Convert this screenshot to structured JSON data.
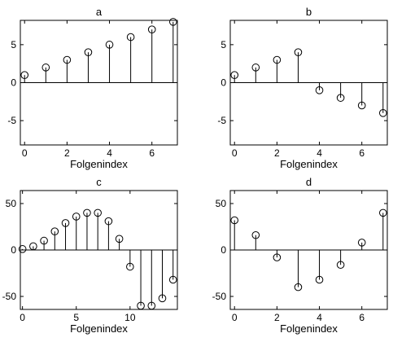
{
  "chart_data": [
    {
      "type": "stem",
      "title": "a",
      "xlabel": "Folgenindex",
      "x": [
        0,
        1,
        2,
        3,
        4,
        5,
        6,
        7
      ],
      "values": [
        1,
        2,
        3,
        4,
        5,
        6,
        7,
        8
      ],
      "xlim": [
        -0.2,
        7.2
      ],
      "ylim": [
        -8.2,
        8.2
      ],
      "xticks": [
        0,
        2,
        4,
        6
      ],
      "yticks": [
        5,
        0,
        -5
      ],
      "grid": false
    },
    {
      "type": "stem",
      "title": "b",
      "xlabel": "Folgenindex",
      "x": [
        0,
        1,
        2,
        3,
        4,
        5,
        6,
        7
      ],
      "values": [
        1,
        2,
        3,
        4,
        -1,
        -2,
        -3,
        -4
      ],
      "xlim": [
        -0.2,
        7.2
      ],
      "ylim": [
        -8.2,
        8.2
      ],
      "xticks": [
        0,
        2,
        4,
        6
      ],
      "yticks": [
        5,
        0,
        -5
      ],
      "grid": false
    },
    {
      "type": "stem",
      "title": "c",
      "xlabel": "Folgenindex",
      "x": [
        0,
        1,
        2,
        3,
        4,
        5,
        6,
        7,
        8,
        9,
        10,
        11,
        12,
        13,
        14
      ],
      "values": [
        1,
        4,
        10,
        20,
        29,
        36,
        40,
        40,
        31,
        12,
        -18,
        -60,
        -60,
        -52,
        -32
      ],
      "xlim": [
        -0.2,
        14.4
      ],
      "ylim": [
        -64,
        64
      ],
      "xticks": [
        0,
        5,
        10
      ],
      "yticks": [
        50,
        0,
        -50
      ],
      "grid": false
    },
    {
      "type": "stem",
      "title": "d",
      "xlabel": "Folgenindex",
      "x": [
        0,
        1,
        2,
        3,
        4,
        5,
        6,
        7
      ],
      "values": [
        32,
        16,
        -8,
        -40,
        -32,
        -16,
        8,
        40
      ],
      "xlim": [
        -0.2,
        7.2
      ],
      "ylim": [
        -64,
        64
      ],
      "xticks": [
        0,
        2,
        4,
        6
      ],
      "yticks": [
        50,
        0,
        -50
      ],
      "grid": false
    }
  ]
}
